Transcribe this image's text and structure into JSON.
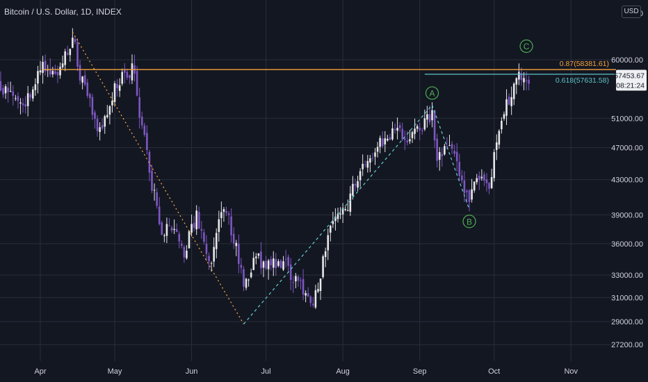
{
  "header": {
    "symbol_title": "Bitcoin / U.S. Dollar, 1D, INDEX",
    "currency_button": "USD"
  },
  "colors": {
    "background": "#131722",
    "grid": "#2a2e39",
    "candle_up": "#e8e8ea",
    "candle_down": "#7e57c2",
    "fib_087": "#f7a23b",
    "fib_0618": "#5ec4c7",
    "wave_label": "#4caf50",
    "price_tag_bg": "#eef0f3"
  },
  "chart_data": {
    "type": "candlestick",
    "title": "Bitcoin / U.S. Dollar, 1D, INDEX",
    "y_scale": "log",
    "ylim": [
      25900,
      65500
    ],
    "x_tick_labels": [
      "Apr",
      "May",
      "Jun",
      "Jul",
      "Aug",
      "Sep",
      "Oct",
      "Nov"
    ],
    "y_tick_labels": [
      {
        "label": "60000.00",
        "value": 60000
      },
      {
        "label": "51000.00",
        "value": 51000
      },
      {
        "label": "47000.00",
        "value": 47000
      },
      {
        "label": "43000.00",
        "value": 43000
      },
      {
        "label": "39000.00",
        "value": 39000
      },
      {
        "label": "36000.00",
        "value": 36000
      },
      {
        "label": "33000.00",
        "value": 33000
      },
      {
        "label": "31000.00",
        "value": 31000
      },
      {
        "label": "29000.00",
        "value": 29000
      },
      {
        "label": "27200.00",
        "value": 27200
      }
    ],
    "top_tick_partial": "6▯.00",
    "current_price": {
      "label": "57453.67",
      "countdown": "08:21:24",
      "value": 57453.67
    },
    "fib_levels": [
      {
        "label": "0.87(58381.61)",
        "value": 58381.61
      },
      {
        "label": "0.618(57631.58)",
        "value": 57631.58
      }
    ],
    "wave_labels": [
      {
        "label": "A",
        "date": "2021-09-06",
        "value": 54700
      },
      {
        "label": "B",
        "date": "2021-09-21",
        "value": 38300
      },
      {
        "label": "C",
        "date": "2021-10-14",
        "value": 62300
      }
    ],
    "projection_lines": [
      {
        "style": "dotted",
        "color_key": "fib_087",
        "from": {
          "date": "2021-04-14",
          "value": 64800
        },
        "to": {
          "date": "2021-06-22",
          "value": 28800
        }
      },
      {
        "style": "dashed",
        "color_key": "fib_0618",
        "from": {
          "date": "2021-06-22",
          "value": 28800
        },
        "to": {
          "date": "2021-09-06",
          "value": 52900
        }
      },
      {
        "style": "dashed",
        "color_key": "fib_0618",
        "from": {
          "date": "2021-09-06",
          "value": 52900
        },
        "to": {
          "date": "2021-09-21",
          "value": 39600
        }
      }
    ],
    "price_anchors": [
      {
        "date": "2021-03-15",
        "value": 56000
      },
      {
        "date": "2021-03-22",
        "value": 54500
      },
      {
        "date": "2021-03-26",
        "value": 53500
      },
      {
        "date": "2021-04-02",
        "value": 58700
      },
      {
        "date": "2021-04-08",
        "value": 58000
      },
      {
        "date": "2021-04-14",
        "value": 63800
      },
      {
        "date": "2021-04-18",
        "value": 56000
      },
      {
        "date": "2021-04-25",
        "value": 49000
      },
      {
        "date": "2021-05-03",
        "value": 56800
      },
      {
        "date": "2021-05-08",
        "value": 58500
      },
      {
        "date": "2021-05-12",
        "value": 49800
      },
      {
        "date": "2021-05-19",
        "value": 37500
      },
      {
        "date": "2021-05-24",
        "value": 38200
      },
      {
        "date": "2021-05-29",
        "value": 35000
      },
      {
        "date": "2021-06-03",
        "value": 39200
      },
      {
        "date": "2021-06-08",
        "value": 33500
      },
      {
        "date": "2021-06-14",
        "value": 40000
      },
      {
        "date": "2021-06-22",
        "value": 32500
      },
      {
        "date": "2021-06-27",
        "value": 34500
      },
      {
        "date": "2021-07-06",
        "value": 34200
      },
      {
        "date": "2021-07-12",
        "value": 33100
      },
      {
        "date": "2021-07-20",
        "value": 29800
      },
      {
        "date": "2021-07-26",
        "value": 37000
      },
      {
        "date": "2021-08-02",
        "value": 39200
      },
      {
        "date": "2021-08-07",
        "value": 43800
      },
      {
        "date": "2021-08-14",
        "value": 47000
      },
      {
        "date": "2021-08-20",
        "value": 48900
      },
      {
        "date": "2021-08-28",
        "value": 48800
      },
      {
        "date": "2021-09-06",
        "value": 51800
      },
      {
        "date": "2021-09-08",
        "value": 46100
      },
      {
        "date": "2021-09-14",
        "value": 47100
      },
      {
        "date": "2021-09-21",
        "value": 40600
      },
      {
        "date": "2021-09-24",
        "value": 42800
      },
      {
        "date": "2021-09-29",
        "value": 41600
      },
      {
        "date": "2021-10-02",
        "value": 47700
      },
      {
        "date": "2021-10-07",
        "value": 53900
      },
      {
        "date": "2021-10-11",
        "value": 57400
      },
      {
        "date": "2021-10-15",
        "value": 57450
      }
    ]
  }
}
